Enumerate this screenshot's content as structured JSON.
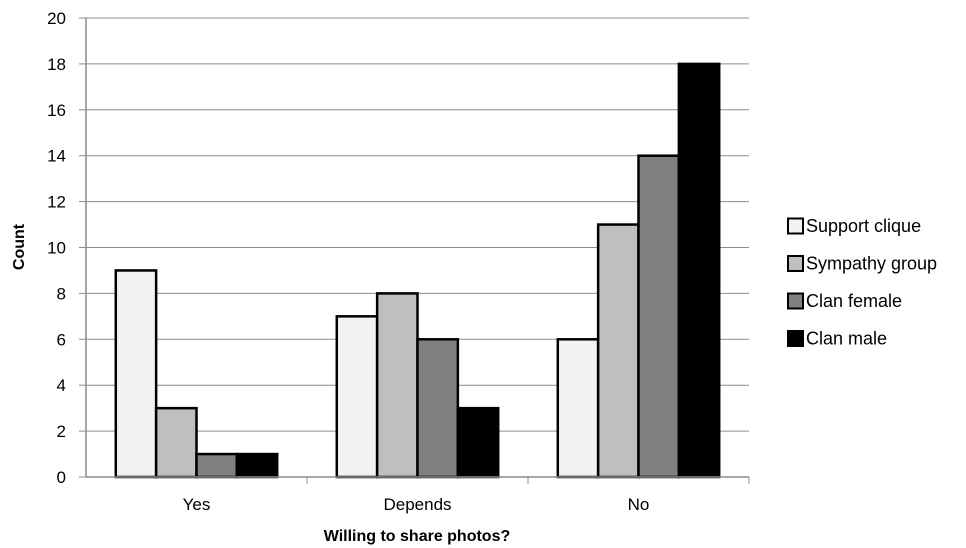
{
  "chart_data": {
    "type": "bar",
    "title": "",
    "xlabel": "Willing to share photos?",
    "ylabel": "Count",
    "ylim": [
      0,
      20
    ],
    "ytick_step": 2,
    "grid": true,
    "legend_position": "right",
    "categories": [
      "Yes",
      "Depends",
      "No"
    ],
    "series": [
      {
        "name": "Support clique",
        "color": "#f2f2f2",
        "values": [
          9,
          7,
          6
        ]
      },
      {
        "name": "Sympathy group",
        "color": "#bfbfbf",
        "values": [
          3,
          8,
          11
        ]
      },
      {
        "name": "Clan female",
        "color": "#808080",
        "values": [
          1,
          6,
          14
        ]
      },
      {
        "name": "Clan male",
        "color": "#000000",
        "values": [
          1,
          3,
          18
        ]
      }
    ]
  }
}
